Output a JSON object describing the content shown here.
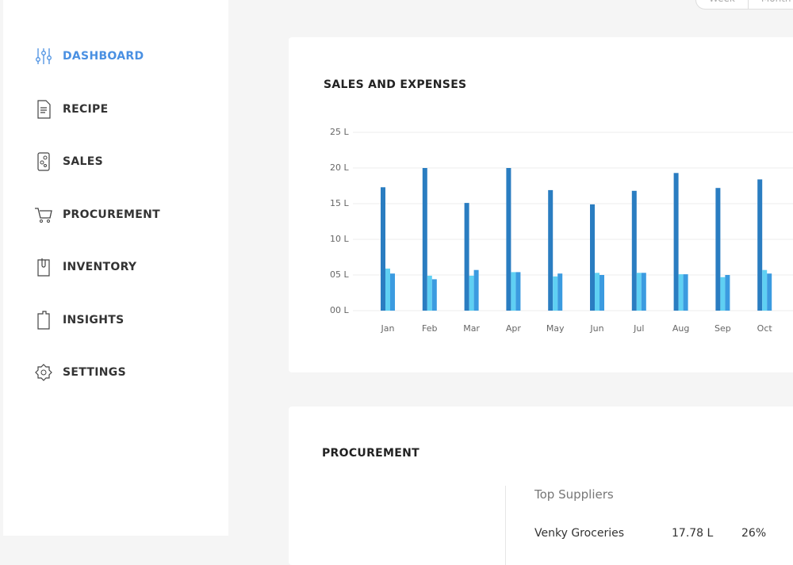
{
  "nav": [
    {
      "label": "DASHBOARD",
      "active": true
    },
    {
      "label": "RECIPE"
    },
    {
      "label": "SALES"
    },
    {
      "label": "PROCUREMENT"
    },
    {
      "label": "INVENTORY"
    },
    {
      "label": "INSIGHTS"
    },
    {
      "label": "SETTINGS"
    }
  ],
  "period_toggle": [
    "Week",
    "Month"
  ],
  "chart_data": {
    "type": "bar",
    "title": "SALES AND EXPENSES",
    "categories": [
      "Jan",
      "Feb",
      "Mar",
      "Apr",
      "May",
      "Jun",
      "Jul",
      "Aug",
      "Sep",
      "Oct"
    ],
    "series": [
      {
        "color": "#2a7dc1",
        "values": [
          17.3,
          20,
          15.1,
          20,
          16.9,
          14.9,
          16.8,
          19.3,
          17.2,
          18.4
        ]
      },
      {
        "color": "#5fd0f3",
        "values": [
          5.9,
          4.9,
          4.9,
          5.4,
          4.8,
          5.3,
          5.3,
          5.1,
          4.7,
          5.7
        ]
      },
      {
        "color": "#3b9be0",
        "values": [
          5.2,
          4.4,
          5.7,
          5.4,
          5.2,
          5.0,
          5.3,
          5.1,
          5.0,
          5.2
        ]
      }
    ],
    "ylim": [
      0,
      25
    ],
    "yticks": [
      {
        "value": 0,
        "label": "00 L"
      },
      {
        "value": 5,
        "label": "05 L"
      },
      {
        "value": 10,
        "label": "10 L"
      },
      {
        "value": 15,
        "label": "15 L"
      },
      {
        "value": 20,
        "label": "20 L"
      },
      {
        "value": 25,
        "label": "25 L"
      }
    ],
    "grid": true
  },
  "procurement": {
    "title": "PROCUREMENT",
    "top_suppliers": {
      "heading": "Top Suppliers",
      "rows": [
        [
          "Venky Groceries",
          "17.78 L",
          "26%"
        ]
      ]
    }
  }
}
